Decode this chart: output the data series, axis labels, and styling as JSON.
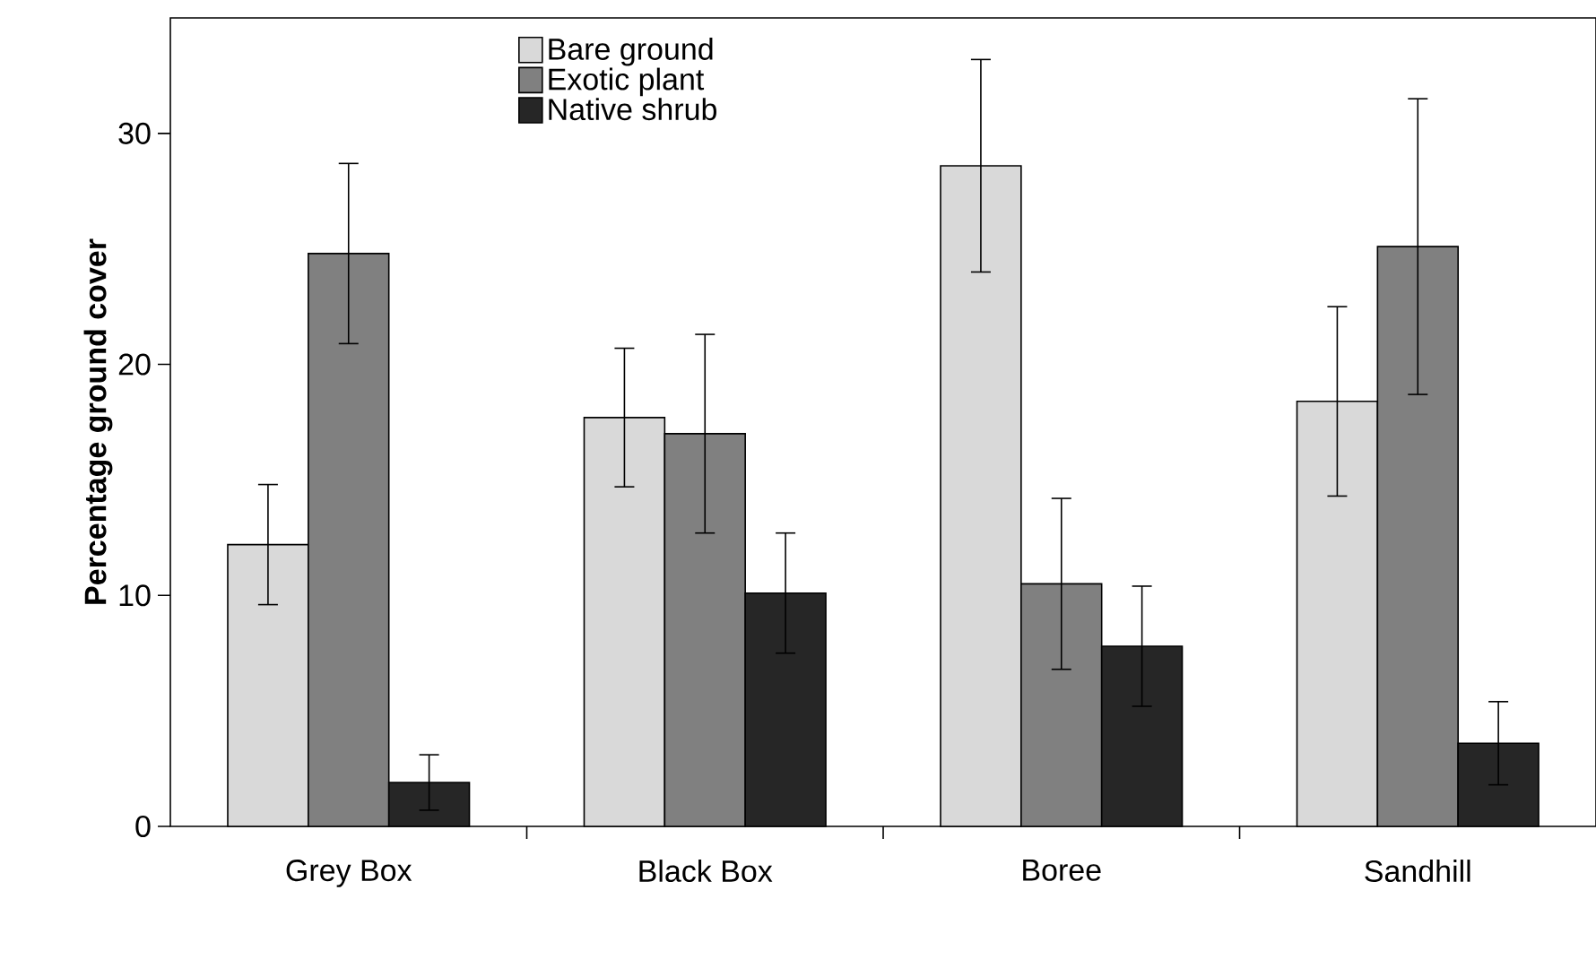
{
  "chart_data": {
    "type": "bar",
    "ylabel": "Percentage ground cover",
    "categories": [
      "Grey Box",
      "Black Box",
      "Boree",
      "Sandhill"
    ],
    "series": [
      {
        "name": "Bare ground",
        "color": "#d9d9d9",
        "values": [
          12.2,
          17.7,
          28.6,
          18.4
        ],
        "errors": [
          2.6,
          3.0,
          4.6,
          4.1
        ]
      },
      {
        "name": "Exotic plant",
        "color": "#808080",
        "values": [
          24.8,
          17.0,
          10.5,
          25.1
        ],
        "errors": [
          3.9,
          4.3,
          3.7,
          6.4
        ]
      },
      {
        "name": "Native shrub",
        "color": "#262626",
        "values": [
          1.9,
          10.1,
          7.8,
          3.6
        ],
        "errors": [
          1.2,
          2.6,
          2.6,
          1.8
        ]
      }
    ],
    "ylim": [
      0,
      35
    ],
    "yticks": [
      0,
      10,
      20,
      30
    ],
    "legend": "top"
  }
}
